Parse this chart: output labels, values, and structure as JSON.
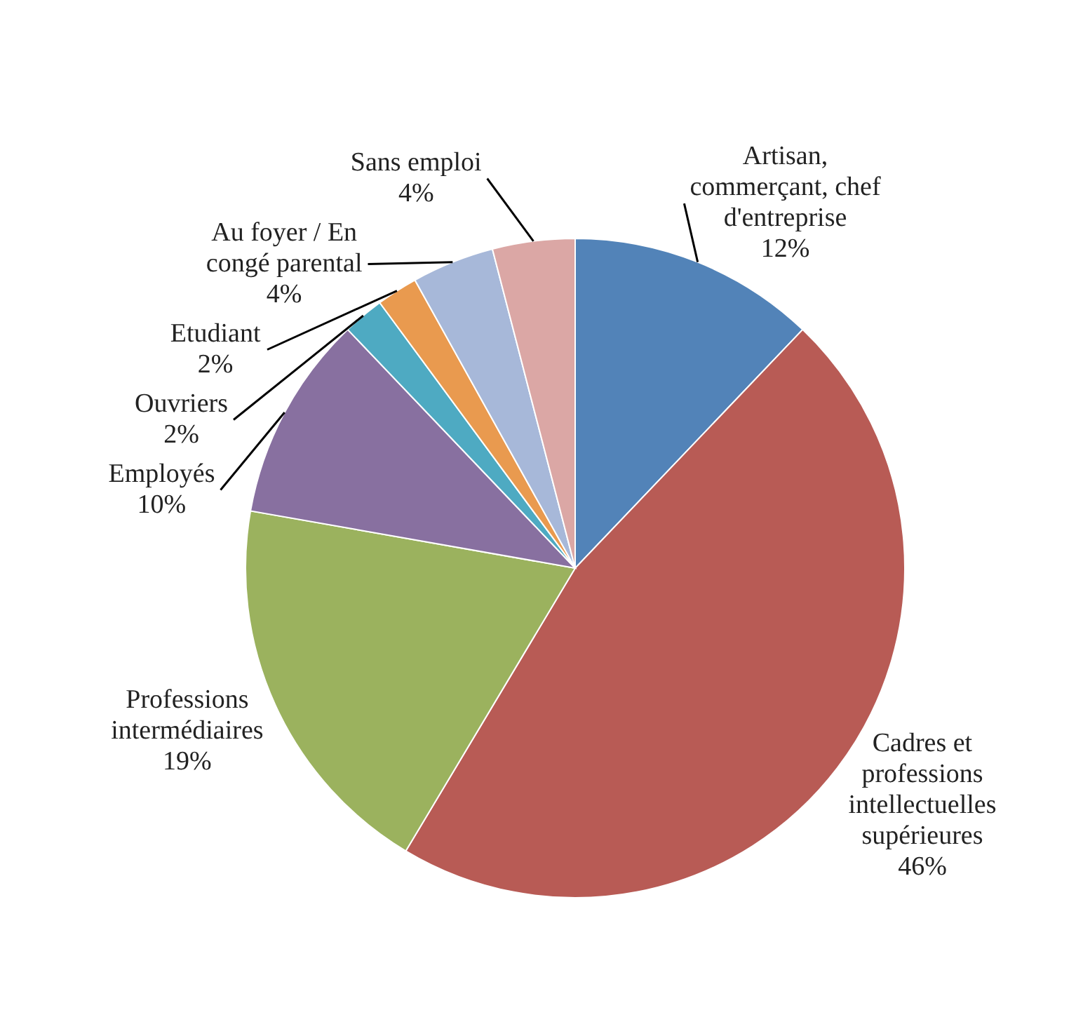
{
  "chart_data": {
    "type": "pie",
    "categories": [
      "Artisan, commerçant, chef d'entreprise",
      "Cadres et professions intellectuelles supérieures",
      "Professions intermédiaires",
      "Employés",
      "Ouvriers",
      "Etudiant",
      "Au foyer / En congé parental",
      "Sans emploi"
    ],
    "values": [
      12,
      46,
      19,
      10,
      2,
      2,
      4,
      4
    ],
    "value_labels": [
      "12%",
      "46%",
      "19%",
      "10%",
      "2%",
      "2%",
      "4%",
      "4%"
    ],
    "colors": [
      "#5283b8",
      "#b85b55",
      "#9bb25e",
      "#8870a0",
      "#4eaac2",
      "#e99a4f",
      "#a7b8d9",
      "#dba7a5"
    ]
  }
}
